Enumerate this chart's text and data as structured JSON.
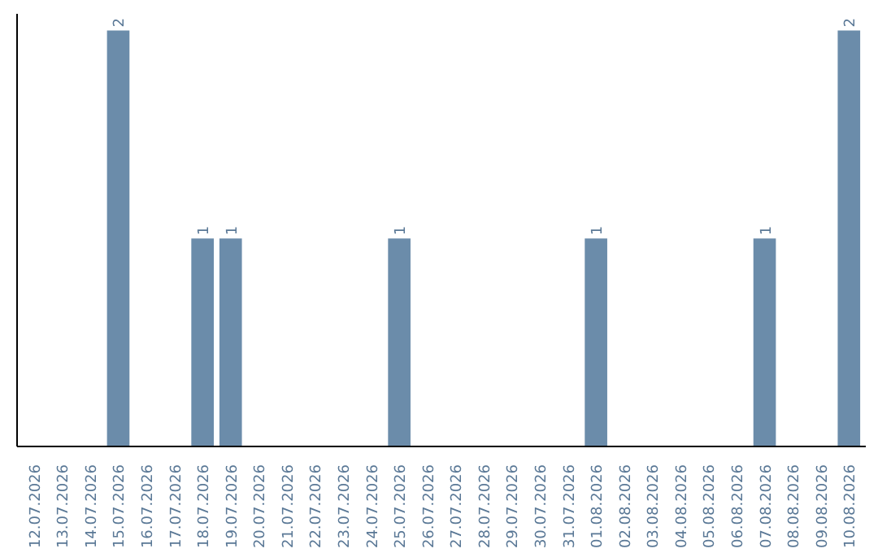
{
  "chart_data": {
    "type": "bar",
    "categories": [
      "12.07.2026",
      "13.07.2026",
      "14.07.2026",
      "15.07.2026",
      "16.07.2026",
      "17.07.2026",
      "18.07.2026",
      "19.07.2026",
      "20.07.2026",
      "21.07.2026",
      "22.07.2026",
      "23.07.2026",
      "24.07.2026",
      "25.07.2026",
      "26.07.2026",
      "27.07.2026",
      "28.07.2026",
      "29.07.2026",
      "30.07.2026",
      "31.07.2026",
      "01.08.2026",
      "02.08.2026",
      "03.08.2026",
      "04.08.2026",
      "05.08.2026",
      "06.08.2026",
      "07.08.2026",
      "08.08.2026",
      "09.08.2026",
      "10.08.2026"
    ],
    "values": [
      0,
      0,
      0,
      2,
      0,
      0,
      1,
      1,
      0,
      0,
      0,
      0,
      0,
      1,
      0,
      0,
      0,
      0,
      0,
      0,
      1,
      0,
      0,
      0,
      0,
      0,
      1,
      0,
      0,
      2
    ],
    "value_labels": [
      null,
      null,
      null,
      "2",
      null,
      null,
      "1",
      "1",
      null,
      null,
      null,
      null,
      null,
      "1",
      null,
      null,
      null,
      null,
      null,
      null,
      "1",
      null,
      null,
      null,
      null,
      null,
      "1",
      null,
      null,
      "2"
    ],
    "color": "#6b8caa",
    "tick_labels": "x"
  }
}
